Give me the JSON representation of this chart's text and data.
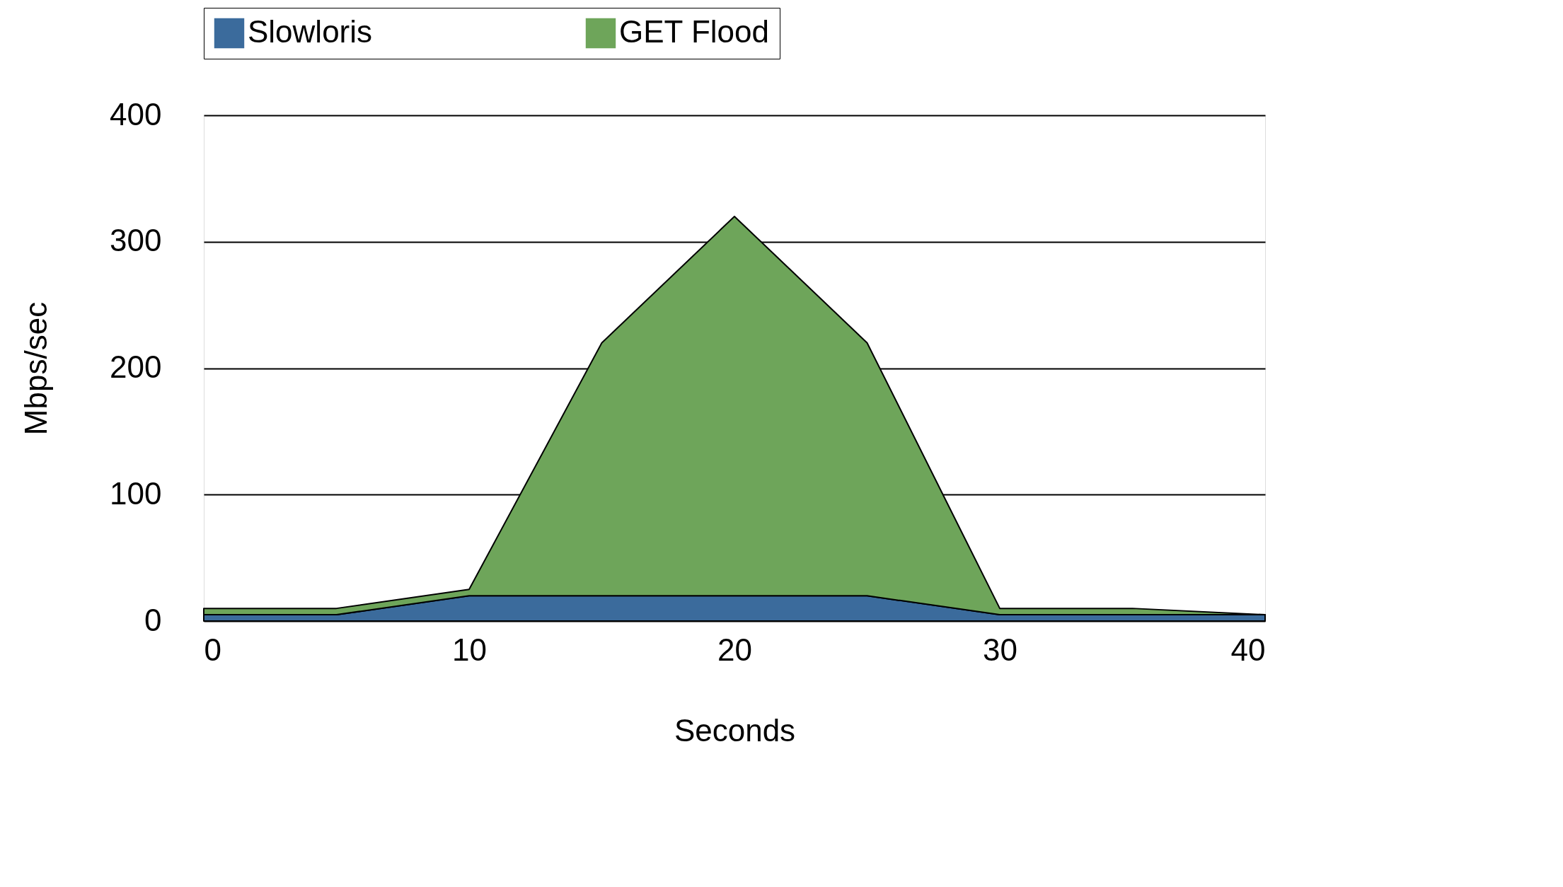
{
  "chart_data": {
    "type": "area",
    "stacked": true,
    "xlabel": "Seconds",
    "ylabel": "Mbps/sec",
    "x": [
      0,
      5,
      10,
      15,
      20,
      25,
      30,
      35,
      40
    ],
    "series": [
      {
        "name": "Slowloris",
        "color": "#3b6b9c",
        "values": [
          5,
          5,
          20,
          20,
          20,
          20,
          5,
          5,
          5
        ]
      },
      {
        "name": "GET Flood",
        "color": "#6ea55a",
        "values": [
          5,
          5,
          5,
          200,
          300,
          200,
          5,
          5,
          0
        ]
      }
    ],
    "xlim": [
      0,
      40
    ],
    "xticks": [
      0,
      10,
      20,
      30,
      40
    ],
    "ylim": [
      0,
      400
    ],
    "yticks": [
      0,
      100,
      200,
      300,
      400
    ],
    "grid": "y",
    "legend": "top"
  }
}
